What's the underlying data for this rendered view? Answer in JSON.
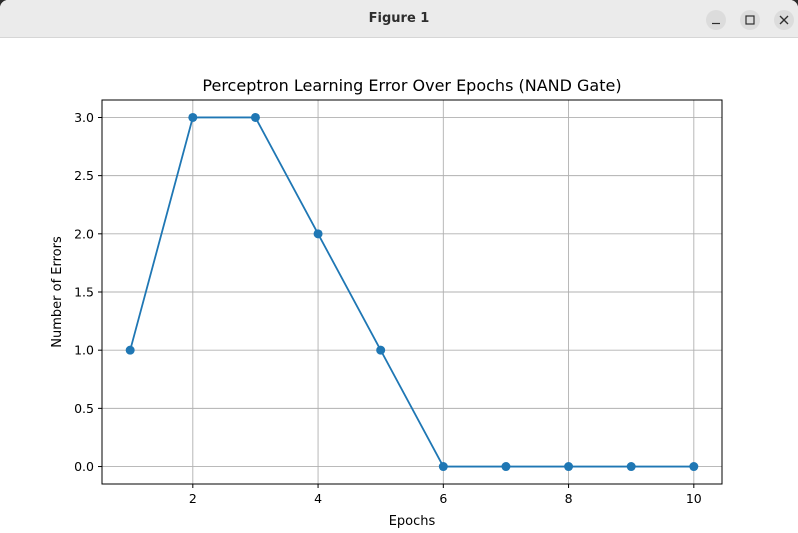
{
  "window": {
    "title": "Figure 1",
    "minimize_icon": "minimize-icon",
    "maximize_icon": "maximize-icon",
    "close_icon": "close-icon"
  },
  "colors": {
    "line": "#1f77b4",
    "grid": "#b0b0b0"
  },
  "chart_data": {
    "type": "line",
    "title": "Perceptron Learning Error Over Epochs (NAND Gate)",
    "xlabel": "Epochs",
    "ylabel": "Number of Errors",
    "x": [
      1,
      2,
      3,
      4,
      5,
      6,
      7,
      8,
      9,
      10
    ],
    "series": [
      {
        "values": [
          1,
          3,
          3,
          2,
          1,
          0,
          0,
          0,
          0,
          0
        ]
      }
    ],
    "xticks": [
      2,
      4,
      6,
      8,
      10
    ],
    "xtick_labels": [
      "2",
      "4",
      "6",
      "8",
      "10"
    ],
    "yticks": [
      0,
      0.5,
      1,
      1.5,
      2,
      2.5,
      3
    ],
    "ytick_labels": [
      "0.0",
      "0.5",
      "1.0",
      "1.5",
      "2.0",
      "2.5",
      "3.0"
    ],
    "xlim": [
      0.55,
      10.45
    ],
    "ylim": [
      -0.15,
      3.15
    ],
    "grid": true,
    "marker": "circle"
  }
}
